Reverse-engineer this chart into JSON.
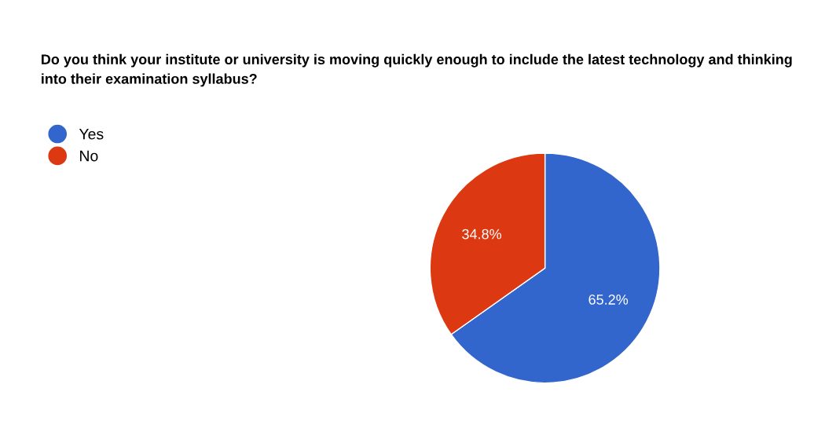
{
  "chart_data": {
    "type": "pie",
    "title": "Do you think your institute or university is moving quickly enough to include the latest technology and thinking into their examination syllabus?",
    "categories": [
      "Yes",
      "No"
    ],
    "values": [
      65.2,
      34.8
    ],
    "colors": [
      "#3366cc",
      "#dc3912"
    ],
    "value_labels": [
      "65.2%",
      "34.8%"
    ],
    "legend": "top left"
  }
}
